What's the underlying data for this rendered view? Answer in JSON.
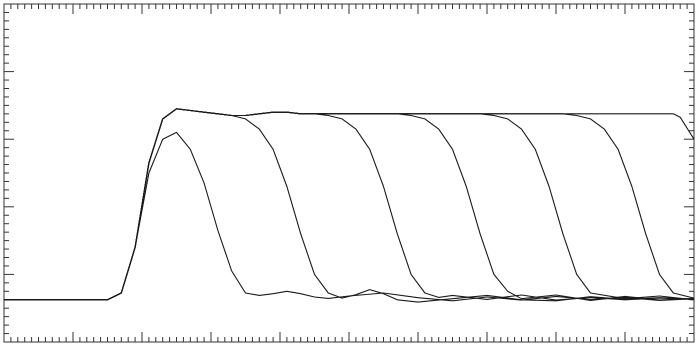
{
  "chart_data": {
    "type": "line",
    "title": "",
    "xlabel": "",
    "ylabel": "",
    "grid": false,
    "legend": "none",
    "xlim": [
      0,
      100
    ],
    "ylim": [
      0,
      100
    ],
    "x_ticks": {
      "major": 10,
      "minor": 1
    },
    "y_ticks": {
      "major": 20,
      "minor": 2.5
    },
    "colors": {
      "trace": "#1a1a1a",
      "frame": "#333333",
      "background": "#ffffff"
    },
    "series": [
      {
        "x": [
          0,
          15,
          17,
          19,
          21,
          23,
          25,
          27,
          29,
          31,
          33,
          35,
          37,
          39,
          41,
          43,
          45,
          47,
          50,
          55,
          60,
          65,
          70,
          75,
          80,
          85,
          90,
          95,
          100
        ],
        "y": [
          12.5,
          12.5,
          14.5,
          28,
          50,
          60,
          62,
          57,
          47,
          33,
          21,
          14.5,
          13.8,
          14.3,
          15,
          14.3,
          13.3,
          12.9,
          13.6,
          14.5,
          13.1,
          12.2,
          13.3,
          12.4,
          13.5,
          12.6,
          13.2,
          12.3,
          12.8
        ]
      },
      {
        "x": [
          0,
          15,
          17,
          19,
          21,
          23,
          25,
          27,
          29,
          31,
          33,
          35,
          37,
          39,
          41,
          43,
          45,
          47,
          49,
          51,
          53,
          55,
          57,
          60,
          65,
          70,
          75,
          80,
          85,
          90,
          95,
          100
        ],
        "y": [
          12.5,
          12.5,
          14.5,
          28,
          53,
          66,
          69,
          68.5,
          68,
          67.5,
          67,
          66,
          63,
          57,
          46,
          32,
          20,
          14.5,
          13,
          14,
          15.5,
          14.3,
          12.5,
          11.8,
          12.8,
          13.8,
          12.5,
          12.2,
          13.4,
          12.6,
          13.1,
          12.7
        ]
      },
      {
        "x": [
          0,
          15,
          17,
          19,
          21,
          23,
          25,
          27,
          29,
          31,
          33,
          35,
          37,
          39,
          41,
          43,
          45,
          47,
          49,
          51,
          53,
          55,
          57,
          59,
          61,
          63,
          65,
          70,
          75,
          80,
          85,
          90,
          95,
          100
        ],
        "y": [
          12.5,
          12.5,
          14.5,
          28,
          53,
          66,
          69,
          68.5,
          68,
          67.5,
          67,
          67,
          67.5,
          68,
          68,
          67.5,
          67.5,
          67,
          66,
          63,
          57,
          46,
          32,
          20,
          14.5,
          13.2,
          13.8,
          12.6,
          13.9,
          12.4,
          13.2,
          12.5,
          13,
          12.6
        ]
      },
      {
        "x": [
          0,
          15,
          17,
          19,
          21,
          23,
          25,
          27,
          29,
          31,
          33,
          35,
          37,
          39,
          41,
          43,
          45,
          47,
          49,
          51,
          53,
          55,
          57,
          59,
          61,
          63,
          65,
          67,
          69,
          71,
          73,
          75,
          80,
          85,
          90,
          95,
          100
        ],
        "y": [
          12.5,
          12.5,
          14.5,
          28,
          53,
          66,
          69,
          68.5,
          68,
          67.5,
          67,
          67,
          67.5,
          68,
          68,
          67.5,
          67.5,
          67.5,
          67.5,
          67.5,
          67.5,
          67.5,
          67.5,
          67,
          66,
          63,
          57,
          46,
          32,
          20,
          15,
          12.8,
          13.9,
          12.3,
          13.5,
          12.4,
          12.9
        ]
      },
      {
        "x": [
          0,
          15,
          17,
          19,
          21,
          23,
          25,
          27,
          29,
          31,
          33,
          35,
          37,
          39,
          41,
          43,
          45,
          47,
          49,
          51,
          53,
          55,
          57,
          59,
          61,
          63,
          65,
          67,
          69,
          71,
          73,
          75,
          77,
          79,
          81,
          83,
          85,
          90,
          95,
          100
        ],
        "y": [
          12.5,
          12.5,
          14.5,
          28,
          53,
          66,
          69,
          68.5,
          68,
          67.5,
          67,
          67,
          67.5,
          68,
          68,
          67.5,
          67.5,
          67.5,
          67.5,
          67.5,
          67.5,
          67.5,
          67.5,
          67.5,
          67.5,
          67.5,
          67.5,
          67.5,
          67.5,
          67,
          66,
          63,
          57,
          46,
          32,
          20,
          14.5,
          12.8,
          13.6,
          12.5
        ]
      },
      {
        "x": [
          0,
          15,
          17,
          19,
          21,
          23,
          25,
          27,
          29,
          31,
          33,
          35,
          37,
          39,
          41,
          43,
          45,
          47,
          49,
          51,
          53,
          55,
          57,
          59,
          61,
          63,
          65,
          67,
          69,
          71,
          73,
          75,
          77,
          79,
          81,
          83,
          85,
          87,
          89,
          91,
          93,
          95,
          97,
          100
        ],
        "y": [
          12.5,
          12.5,
          14.5,
          28,
          53,
          66,
          69,
          68.5,
          68,
          67.5,
          67,
          67,
          67.5,
          68,
          68,
          67.5,
          67.5,
          67.5,
          67.5,
          67.5,
          67.5,
          67.5,
          67.5,
          67.5,
          67.5,
          67.5,
          67.5,
          67.5,
          67.5,
          67.5,
          67.5,
          67.5,
          67.5,
          67.5,
          67.5,
          67,
          66,
          63,
          57,
          46,
          32,
          20,
          14.5,
          13
        ]
      },
      {
        "x": [
          0,
          15,
          17,
          19,
          21,
          23,
          25,
          27,
          29,
          31,
          33,
          35,
          37,
          39,
          41,
          43,
          45,
          47,
          49,
          51,
          53,
          55,
          57,
          59,
          61,
          63,
          65,
          67,
          69,
          71,
          73,
          75,
          77,
          79,
          81,
          83,
          85,
          87,
          89,
          91,
          93,
          95,
          97,
          98,
          100
        ],
        "y": [
          12.5,
          12.5,
          14.5,
          28,
          53,
          66,
          69,
          68.5,
          68,
          67.5,
          67,
          67,
          67.5,
          68,
          68,
          67.5,
          67.5,
          67.5,
          67.5,
          67.5,
          67.5,
          67.5,
          67.5,
          67.5,
          67.5,
          67.5,
          67.5,
          67.5,
          67.5,
          67.5,
          67.5,
          67.5,
          67.5,
          67.5,
          67.5,
          67.5,
          67.5,
          67.5,
          67.5,
          67.5,
          67.5,
          67.5,
          67.5,
          66.5,
          60
        ]
      }
    ]
  }
}
